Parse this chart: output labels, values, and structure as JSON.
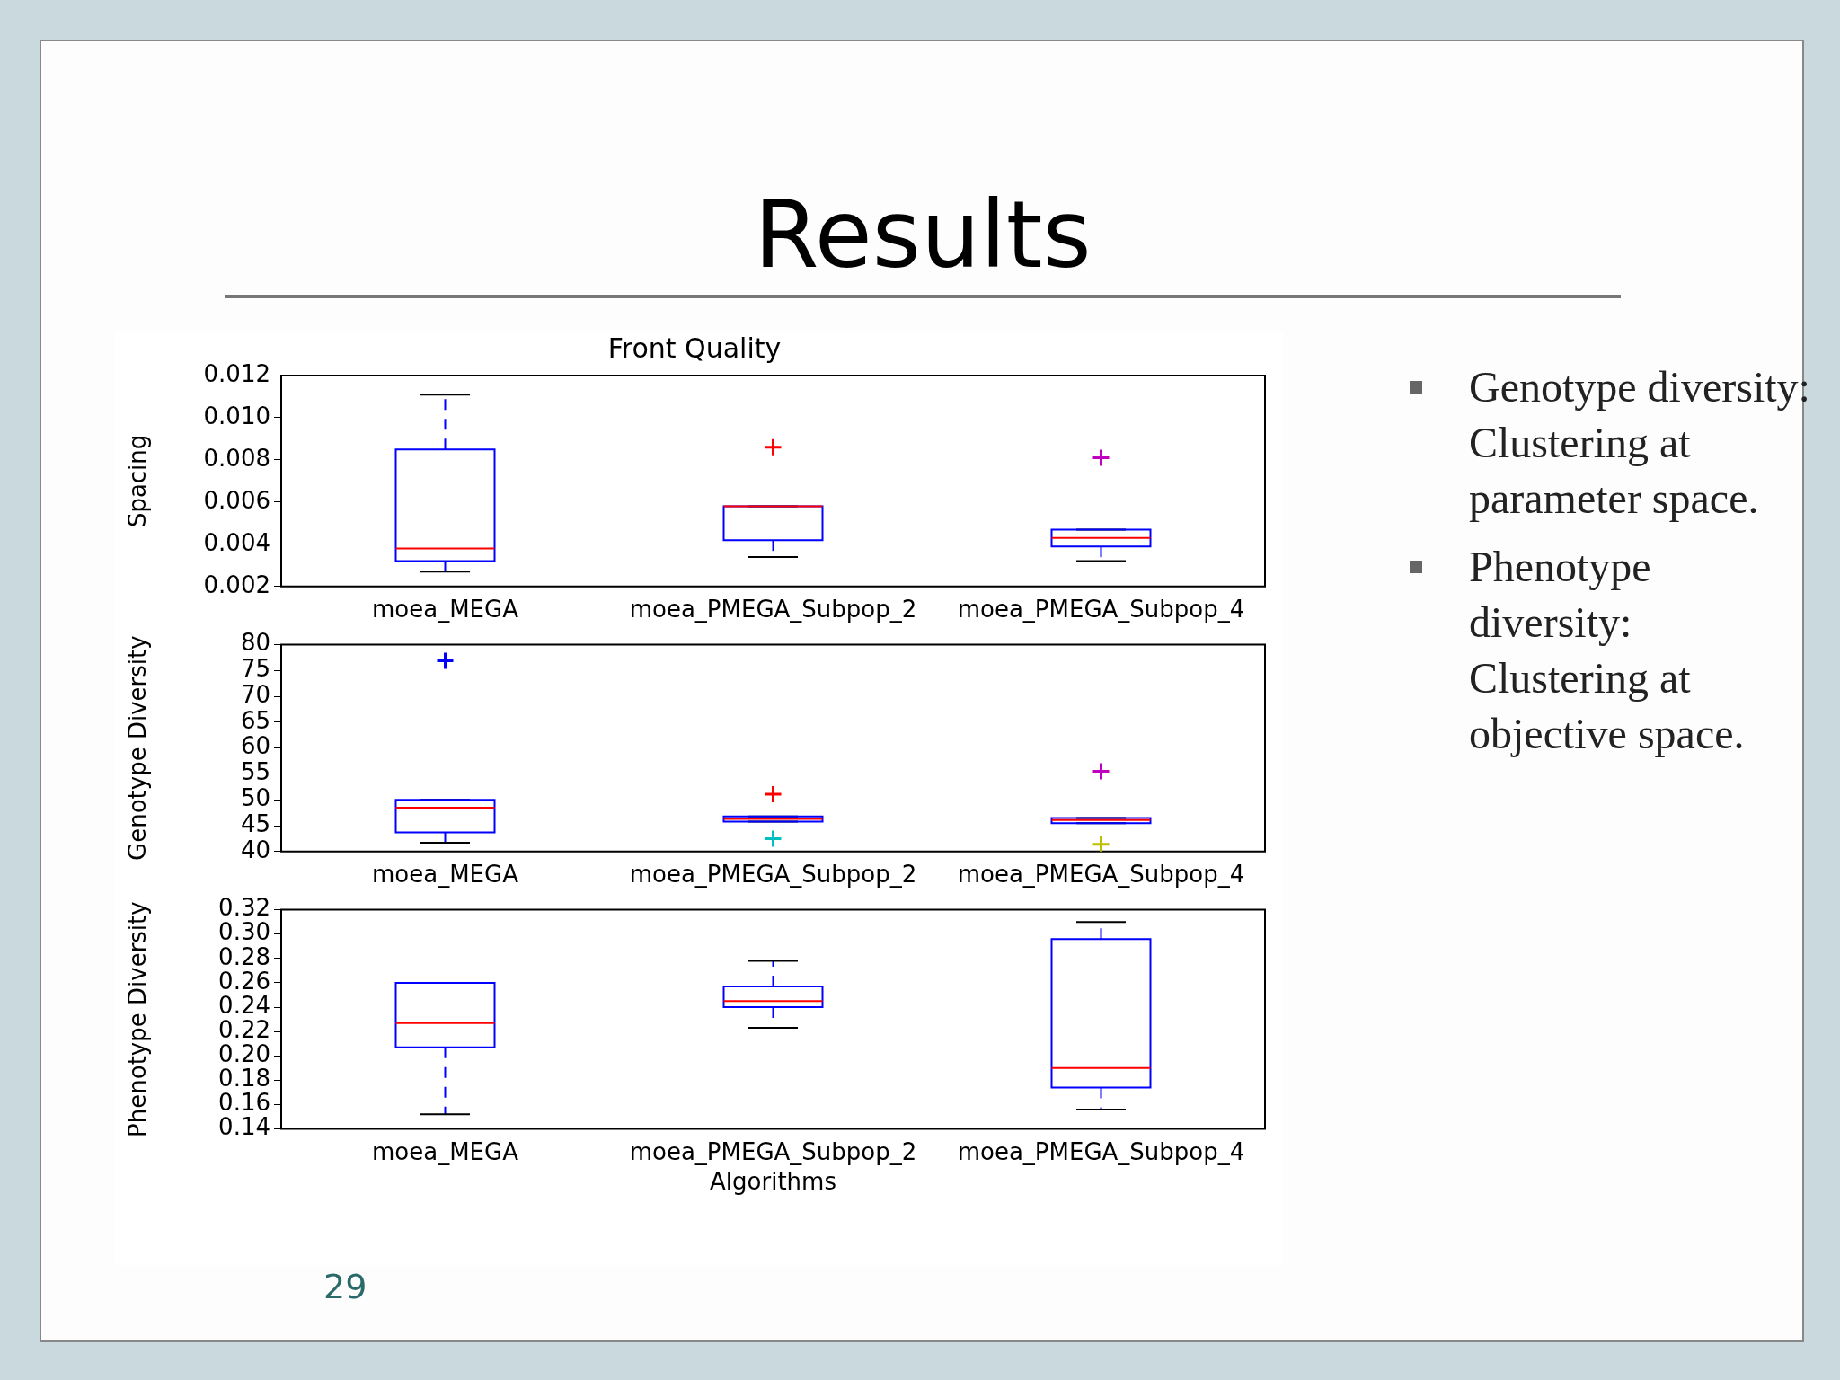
{
  "chart_data": [
    {
      "type": "box",
      "title": "Front Quality",
      "ylabel": "Spacing",
      "categories": [
        "moea_MEGA",
        "moea_PMEGA_Subpop_2",
        "moea_PMEGA_Subpop_4"
      ],
      "ylim": [
        0.002,
        0.012
      ],
      "yticks": [
        {
          "value": 0.002,
          "label": "0.002"
        },
        {
          "value": 0.004,
          "label": "0.004"
        },
        {
          "value": 0.006,
          "label": "0.006"
        },
        {
          "value": 0.008,
          "label": "0.008"
        },
        {
          "value": 0.01,
          "label": "0.010"
        },
        {
          "value": 0.012,
          "label": "0.012"
        }
      ],
      "grid": false,
      "legend": false,
      "series": [
        {
          "type": "box",
          "color": "#0000ff",
          "boxes": [
            {
              "low": 0.0027,
              "q1": 0.0032,
              "median": 0.0038,
              "q3": 0.0085,
              "high": 0.0111
            },
            {
              "low": 0.0034,
              "q1": 0.0042,
              "median": 0.0058,
              "q3": 0.0058,
              "high": 0.0058
            },
            {
              "low": 0.0032,
              "q1": 0.0039,
              "median": 0.0043,
              "q3": 0.0047,
              "high": 0.0047
            }
          ]
        },
        {
          "type": "scatter",
          "marker": "cross",
          "x": [
            "moea_PMEGA_Subpop_2",
            "moea_PMEGA_Subpop_4"
          ],
          "values": [
            0.0086,
            0.0081
          ],
          "colors": [
            "#ff0000",
            "#bf00bf"
          ]
        }
      ]
    },
    {
      "type": "box",
      "ylabel": "Genotype Diversity",
      "categories": [
        "moea_MEGA",
        "moea_PMEGA_Subpop_2",
        "moea_PMEGA_Subpop_4"
      ],
      "ylim": [
        40,
        80
      ],
      "yticks": [
        40,
        45,
        50,
        55,
        60,
        65,
        70,
        75,
        80
      ],
      "grid": false,
      "legend": false,
      "series": [
        {
          "type": "box",
          "color": "#0000ff",
          "boxes": [
            {
              "low": 41.7,
              "q1": 43.7,
              "median": 48.5,
              "q3": 50,
              "high": 50
            },
            {
              "low": 45.8,
              "q1": 45.8,
              "median": 46.3,
              "q3": 46.8,
              "high": 46.8
            },
            {
              "low": 45.5,
              "q1": 45.5,
              "median": 46.1,
              "q3": 46.5,
              "high": 46.5
            }
          ]
        },
        {
          "type": "scatter",
          "marker": "cross",
          "x": [
            "moea_MEGA",
            "moea_PMEGA_Subpop_2",
            "moea_PMEGA_Subpop_2",
            "moea_PMEGA_Subpop_4",
            "moea_PMEGA_Subpop_4"
          ],
          "values": [
            76.9,
            51.1,
            42.5,
            55.5,
            41.4
          ],
          "colors": [
            "#0000ff",
            "#ff0000",
            "#00bfbf",
            "#bf00bf",
            "#bfbf00"
          ]
        }
      ]
    },
    {
      "type": "box",
      "ylabel": "Phenotype Diversity",
      "xlabel": "Algorithms",
      "categories": [
        "moea_MEGA",
        "moea_PMEGA_Subpop_2",
        "moea_PMEGA_Subpop_4"
      ],
      "ylim": [
        0.14,
        0.32
      ],
      "yticks": [
        {
          "value": 0.14,
          "label": "0.14"
        },
        {
          "value": 0.16,
          "label": "0.16"
        },
        {
          "value": 0.18,
          "label": "0.18"
        },
        {
          "value": 0.2,
          "label": "0.20"
        },
        {
          "value": 0.22,
          "label": "0.22"
        },
        {
          "value": 0.24,
          "label": "0.24"
        },
        {
          "value": 0.26,
          "label": "0.26"
        },
        {
          "value": 0.28,
          "label": "0.28"
        },
        {
          "value": 0.3,
          "label": "0.30"
        },
        {
          "value": 0.32,
          "label": "0.32"
        }
      ],
      "grid": false,
      "legend": false,
      "annotations": [
        "29"
      ],
      "series": [
        {
          "type": "box",
          "color": "#0000ff",
          "boxes": [
            {
              "low": 0.152,
              "q1": 0.207,
              "median": 0.227,
              "q3": 0.26,
              "high": 0.26
            },
            {
              "low": 0.223,
              "q1": 0.24,
              "median": 0.245,
              "q3": 0.257,
              "high": 0.278
            },
            {
              "low": 0.156,
              "q1": 0.174,
              "median": 0.19,
              "q3": 0.296,
              "high": 0.31
            }
          ]
        }
      ]
    },
    {
      "type": "other",
      "title": "Results",
      "annotations": [
        "Genotype diversity: Clustering at parameter space.",
        "Phenotype diversity: Clustering at objective space."
      ]
    }
  ]
}
